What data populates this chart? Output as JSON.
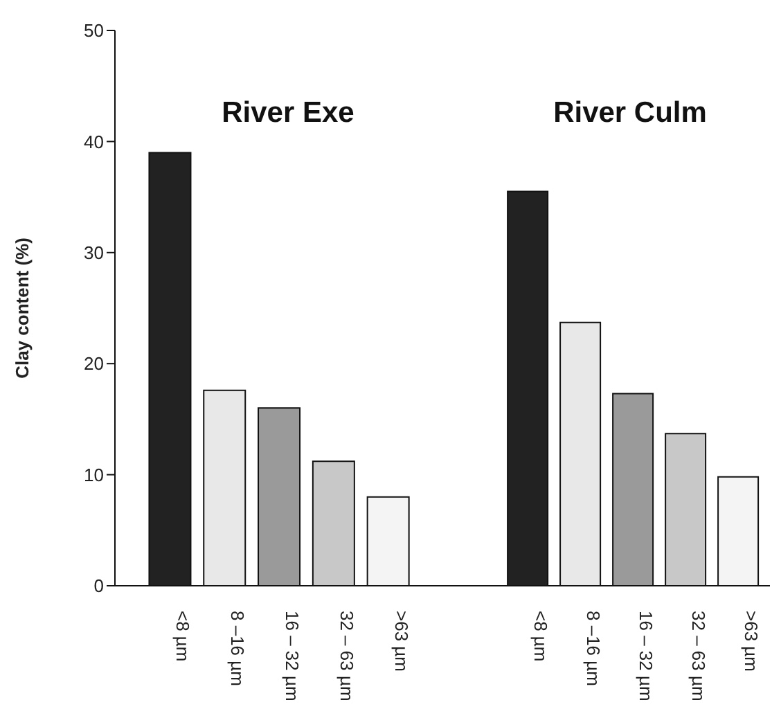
{
  "chart_data": [
    {
      "type": "bar",
      "title": "River Exe",
      "ylabel": "Clay content (%)",
      "categories": [
        "<8 µm",
        "8 –16 µm",
        "16 – 32 µm",
        "32 – 63 µm",
        ">63 µm"
      ],
      "values": [
        39,
        17.6,
        16,
        11.2,
        8
      ],
      "colors": [
        "#222222",
        "#e8e8e8",
        "#9a9a9a",
        "#c8c8c8",
        "#f4f4f4"
      ],
      "ylim": [
        0,
        50
      ],
      "yticks": [
        0,
        10,
        20,
        30,
        40,
        50
      ],
      "grid": false
    },
    {
      "type": "bar",
      "title": "River Culm",
      "categories": [
        "<8 µm",
        "8 –16 µm",
        "16 – 32 µm",
        "32 – 63 µm",
        ">63 µm"
      ],
      "values": [
        35.5,
        23.7,
        17.3,
        13.7,
        9.8
      ],
      "colors": [
        "#222222",
        "#e8e8e8",
        "#9a9a9a",
        "#c8c8c8",
        "#f4f4f4"
      ],
      "ylim": [
        0,
        50
      ],
      "yticks": [
        0,
        10,
        20,
        30,
        40,
        50
      ],
      "grid": false,
      "tick_labels": "x"
    }
  ]
}
